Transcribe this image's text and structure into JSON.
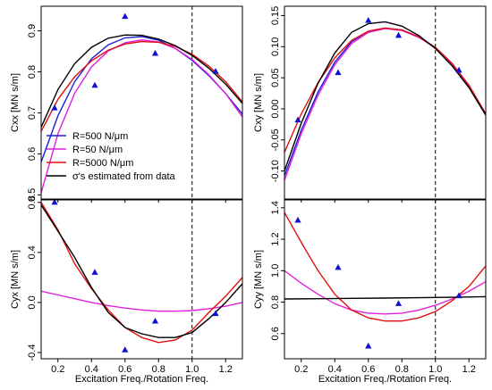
{
  "chart_data": [
    {
      "type": "line",
      "ylabel": "Cxx [MN s/m]",
      "xlabel": "",
      "xlim": [
        0.1,
        1.3
      ],
      "ylim": [
        0.49,
        0.96
      ],
      "xticks": [
        0.2,
        0.4,
        0.6,
        0.8,
        1.0,
        1.2
      ],
      "yticks": [
        0.5,
        0.6,
        0.7,
        0.8,
        0.9
      ],
      "ytick_labels": [
        "0.5",
        "0.6",
        "0.7",
        "0.8",
        "0.9"
      ],
      "xtick_labels_visible": false,
      "ref_line_x": 1.0,
      "series": [
        {
          "name": "R=500 N/μm",
          "color": "#1f1fd6",
          "x": [
            0.1,
            0.2,
            0.3,
            0.4,
            0.5,
            0.6,
            0.7,
            0.8,
            0.9,
            1.0,
            1.1,
            1.2,
            1.3
          ],
          "values": [
            0.58,
            0.693,
            0.776,
            0.832,
            0.866,
            0.883,
            0.886,
            0.877,
            0.857,
            0.828,
            0.791,
            0.747,
            0.697
          ]
        },
        {
          "name": "R=50 N/μm",
          "color": "#e020e0",
          "x": [
            0.1,
            0.2,
            0.3,
            0.4,
            0.5,
            0.6,
            0.7,
            0.8,
            0.9,
            1.0,
            1.1,
            1.2,
            1.3
          ],
          "values": [
            0.505,
            0.649,
            0.748,
            0.812,
            0.851,
            0.871,
            0.878,
            0.873,
            0.857,
            0.83,
            0.793,
            0.747,
            0.69
          ]
        },
        {
          "name": "R=5000 N/μm",
          "color": "#e01010",
          "x": [
            0.1,
            0.2,
            0.3,
            0.4,
            0.5,
            0.6,
            0.7,
            0.8,
            0.9,
            1.0,
            1.1,
            1.2,
            1.3
          ],
          "values": [
            0.655,
            0.733,
            0.788,
            0.827,
            0.853,
            0.868,
            0.874,
            0.872,
            0.862,
            0.843,
            0.814,
            0.776,
            0.727
          ]
        },
        {
          "name": "σ's estimated from data",
          "color": "#000000",
          "x": [
            0.1,
            0.2,
            0.3,
            0.4,
            0.5,
            0.6,
            0.7,
            0.8,
            0.9,
            1.0,
            1.1,
            1.2,
            1.3
          ],
          "values": [
            0.665,
            0.757,
            0.82,
            0.86,
            0.882,
            0.89,
            0.889,
            0.88,
            0.864,
            0.84,
            0.809,
            0.77,
            0.723
          ]
        }
      ],
      "points": {
        "name": "Measured",
        "color": "#1010d0",
        "x": [
          0.18,
          0.42,
          0.6,
          0.78,
          1.14
        ],
        "values": [
          0.712,
          0.767,
          0.935,
          0.845,
          0.801
        ]
      },
      "legend": {
        "placement": "bottom-left",
        "entries": [
          {
            "label": "R=500 N/μm",
            "color": "#1f1fd6"
          },
          {
            "label": "R=50 N/μm",
            "color": "#e020e0"
          },
          {
            "label": "R=5000 N/μm",
            "color": "#e01010"
          },
          {
            "label": "σ's estimated from data",
            "color": "#000000"
          }
        ]
      }
    },
    {
      "type": "line",
      "ylabel": "Cxy [MN s/m]",
      "xlabel": "",
      "xlim": [
        0.1,
        1.3
      ],
      "ylim": [
        -0.145,
        0.165
      ],
      "xticks": [
        0.2,
        0.4,
        0.6,
        0.8,
        1.0,
        1.2
      ],
      "yticks": [
        -0.1,
        -0.05,
        0.0,
        0.05,
        0.1,
        0.15
      ],
      "ytick_labels": [
        "-0.10",
        "-0.05",
        "0.00",
        "0.05",
        "0.10",
        "0.15"
      ],
      "xtick_labels_visible": false,
      "ref_line_x": 1.0,
      "series": [
        {
          "name": "R=500 N/μm",
          "color": "#1f1fd6",
          "x": [
            0.1,
            0.2,
            0.3,
            0.4,
            0.5,
            0.6,
            0.7,
            0.8,
            0.9,
            1.0,
            1.1,
            1.2,
            1.3
          ],
          "values": [
            -0.108,
            -0.034,
            0.027,
            0.075,
            0.108,
            0.125,
            0.13,
            0.127,
            0.116,
            0.098,
            0.072,
            0.036,
            -0.01
          ]
        },
        {
          "name": "R=50 N/μm",
          "color": "#e020e0",
          "x": [
            0.1,
            0.2,
            0.3,
            0.4,
            0.5,
            0.6,
            0.7,
            0.8,
            0.9,
            1.0,
            1.1,
            1.2,
            1.3
          ],
          "values": [
            -0.115,
            -0.04,
            0.022,
            0.071,
            0.105,
            0.123,
            0.129,
            0.126,
            0.115,
            0.098,
            0.072,
            0.037,
            -0.008
          ]
        },
        {
          "name": "R=5000 N/μm",
          "color": "#e01010",
          "x": [
            0.1,
            0.2,
            0.3,
            0.4,
            0.5,
            0.6,
            0.7,
            0.8,
            0.9,
            1.0,
            1.1,
            1.2,
            1.3
          ],
          "values": [
            -0.07,
            -0.008,
            0.042,
            0.082,
            0.11,
            0.125,
            0.13,
            0.127,
            0.116,
            0.099,
            0.073,
            0.038,
            -0.008
          ]
        },
        {
          "name": "σ's estimated from data",
          "color": "#000000",
          "x": [
            0.1,
            0.2,
            0.3,
            0.4,
            0.5,
            0.6,
            0.7,
            0.8,
            0.9,
            1.0,
            1.1,
            1.2,
            1.3
          ],
          "values": [
            -0.1,
            -0.023,
            0.041,
            0.09,
            0.123,
            0.137,
            0.14,
            0.133,
            0.118,
            0.097,
            0.069,
            0.034,
            -0.01
          ]
        }
      ],
      "points": {
        "name": "Measured",
        "color": "#1010d0",
        "x": [
          0.18,
          0.42,
          0.6,
          0.78,
          1.14
        ],
        "values": [
          -0.018,
          0.058,
          0.142,
          0.118,
          0.062
        ]
      }
    },
    {
      "type": "line",
      "ylabel": "Cyx [MN s/m]",
      "xlabel": "Excitation Freq./Rotation Freq.",
      "xlim": [
        0.1,
        1.3
      ],
      "ylim": [
        -0.45,
        0.82
      ],
      "xticks": [
        0.2,
        0.4,
        0.6,
        0.8,
        1.0,
        1.2
      ],
      "xtick_labels": [
        "0.2",
        "0.4",
        "0.6",
        "0.8",
        "1.0",
        "1.2"
      ],
      "yticks": [
        -0.4,
        0.0,
        0.4,
        0.8
      ],
      "ytick_labels": [
        "-0.4",
        "0.0",
        "0.4",
        "0.8"
      ],
      "xtick_labels_visible": true,
      "ref_line_x": 1.0,
      "series": [
        {
          "name": "R=50 N/μm",
          "color": "#e020e0",
          "x": [
            0.1,
            0.2,
            0.3,
            0.4,
            0.5,
            0.6,
            0.7,
            0.8,
            0.9,
            1.0,
            1.1,
            1.2,
            1.3
          ],
          "values": [
            0.09,
            0.06,
            0.03,
            0.0,
            -0.025,
            -0.045,
            -0.06,
            -0.07,
            -0.07,
            -0.065,
            -0.05,
            -0.03,
            0.0
          ]
        },
        {
          "name": "R=5000 N/μm",
          "color": "#e01010",
          "x": [
            0.1,
            0.2,
            0.3,
            0.4,
            0.5,
            0.6,
            0.7,
            0.8,
            0.9,
            1.0,
            1.1,
            1.2,
            1.3
          ],
          "values": [
            0.8,
            0.58,
            0.31,
            0.11,
            -0.06,
            -0.2,
            -0.28,
            -0.32,
            -0.3,
            -0.22,
            -0.08,
            0.05,
            0.2
          ]
        },
        {
          "name": "σ's estimated from data",
          "color": "#000000",
          "x": [
            0.1,
            0.2,
            0.3,
            0.4,
            0.5,
            0.6,
            0.7,
            0.8,
            0.9,
            1.0,
            1.1,
            1.2,
            1.3
          ],
          "values": [
            0.78,
            0.57,
            0.36,
            0.12,
            -0.08,
            -0.2,
            -0.25,
            -0.28,
            -0.28,
            -0.24,
            -0.13,
            0.0,
            0.15
          ]
        }
      ],
      "points": {
        "name": "Measured",
        "color": "#1010d0",
        "x": [
          0.18,
          0.42,
          0.6,
          0.78,
          1.14
        ],
        "values": [
          0.8,
          0.24,
          -0.38,
          -0.15,
          -0.09
        ]
      }
    },
    {
      "type": "line",
      "ylabel": "Cyy [MN s/m]",
      "xlabel": "Excitation Freq./Rotation Freq.",
      "xlim": [
        0.1,
        1.3
      ],
      "ylim": [
        0.44,
        1.45
      ],
      "xticks": [
        0.2,
        0.4,
        0.6,
        0.8,
        1.0,
        1.2
      ],
      "xtick_labels": [
        "0.2",
        "0.4",
        "0.6",
        "0.8",
        "1.0",
        "1.2"
      ],
      "yticks": [
        0.6,
        0.8,
        1.0,
        1.2,
        1.4
      ],
      "ytick_labels": [
        "0.6",
        "0.8",
        "1.0",
        "1.2",
        "1.4"
      ],
      "xtick_labels_visible": true,
      "ref_line_x": 1.0,
      "series": [
        {
          "name": "R=50 N/μm",
          "color": "#e020e0",
          "x": [
            0.1,
            0.2,
            0.3,
            0.4,
            0.5,
            0.6,
            0.7,
            0.8,
            0.9,
            1.0,
            1.1,
            1.2,
            1.3
          ],
          "values": [
            1.0,
            0.92,
            0.85,
            0.79,
            0.75,
            0.73,
            0.725,
            0.73,
            0.75,
            0.78,
            0.82,
            0.87,
            0.93
          ]
        },
        {
          "name": "R=5000 N/μm",
          "color": "#e01010",
          "x": [
            0.1,
            0.2,
            0.3,
            0.4,
            0.5,
            0.6,
            0.7,
            0.8,
            0.9,
            1.0,
            1.1,
            1.2,
            1.3
          ],
          "values": [
            1.37,
            1.18,
            1.0,
            0.85,
            0.75,
            0.7,
            0.68,
            0.68,
            0.7,
            0.74,
            0.81,
            0.9,
            1.03
          ]
        },
        {
          "name": "σ's estimated from data",
          "color": "#000000",
          "x": [
            0.1,
            0.3,
            0.5,
            0.7,
            0.9,
            1.1,
            1.3
          ],
          "values": [
            0.82,
            0.822,
            0.824,
            0.826,
            0.828,
            0.831,
            0.835
          ]
        }
      ],
      "points": {
        "name": "Measured",
        "color": "#1010d0",
        "x": [
          0.18,
          0.42,
          0.6,
          0.78,
          1.14
        ],
        "values": [
          1.32,
          1.02,
          0.52,
          0.79,
          0.84
        ]
      }
    }
  ]
}
